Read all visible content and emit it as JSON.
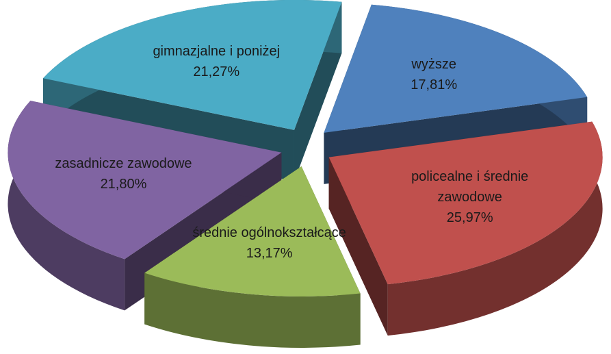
{
  "chart_data": {
    "type": "pie3d",
    "categories": [
      "wyższe",
      "policealne i średnie zawodowe",
      "średnie ogólnokształcące",
      "zasadnicze zawodowe",
      "gimnazjalne i poniżej"
    ],
    "values": [
      17.81,
      25.97,
      13.17,
      21.8,
      21.27
    ],
    "value_labels": [
      "17,81%",
      "25,97%",
      "13,17%",
      "21,80%",
      "21,27%"
    ],
    "colors": [
      "#4f81bd",
      "#c0504d",
      "#9bbb59",
      "#8064a2",
      "#4bacc6"
    ]
  }
}
